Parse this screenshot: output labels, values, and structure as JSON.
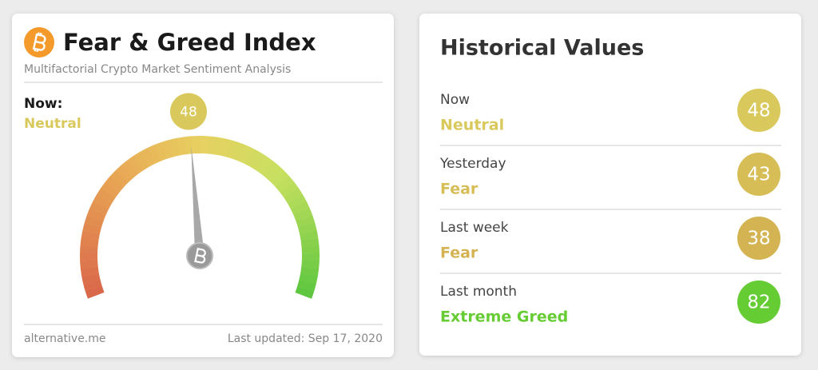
{
  "header": {
    "title": "Fear & Greed Index",
    "subtitle": "Multifactorial Crypto Market Sentiment Analysis"
  },
  "current": {
    "label": "Now:",
    "classification": "Neutral",
    "value": 48,
    "color": "#d9c95c"
  },
  "gauge": {
    "ylim": [
      0,
      100
    ]
  },
  "footer": {
    "source": "alternative.me",
    "updated": "Last updated: Sep 17, 2020"
  },
  "historical": {
    "title": "Historical Values",
    "rows": [
      {
        "period": "Now",
        "classification": "Neutral",
        "value": 48,
        "color": "#d9c95c"
      },
      {
        "period": "Yesterday",
        "classification": "Fear",
        "value": 43,
        "color": "#d6bd55"
      },
      {
        "period": "Last week",
        "classification": "Fear",
        "value": 38,
        "color": "#d4b452"
      },
      {
        "period": "Last month",
        "classification": "Extreme Greed",
        "value": 82,
        "color": "#66cc33"
      }
    ]
  }
}
